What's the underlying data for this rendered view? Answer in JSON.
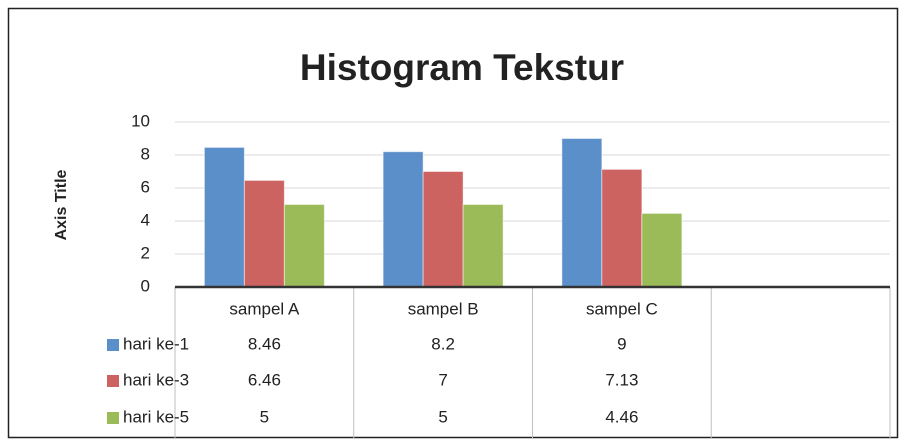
{
  "chart_data": {
    "type": "bar",
    "title": "Histogram Tekstur",
    "y_axis_label": "Axis Title",
    "categories": [
      "sampel A",
      "sampel B",
      "sampel C",
      null
    ],
    "series": [
      {
        "name": "hari ke-1",
        "color": "#5b8fc9",
        "values": [
          8.46,
          8.2,
          9,
          null
        ]
      },
      {
        "name": "hari ke-3",
        "color": "#cd6361",
        "values": [
          6.46,
          7,
          7.13,
          null
        ]
      },
      {
        "name": "hari ke-5",
        "color": "#9bbb59",
        "values": [
          5,
          5,
          4.46,
          null
        ]
      }
    ],
    "ylim": [
      0,
      10
    ],
    "yticks": [
      0,
      2,
      4,
      6,
      8,
      10
    ],
    "grid": true,
    "data_table": true
  }
}
